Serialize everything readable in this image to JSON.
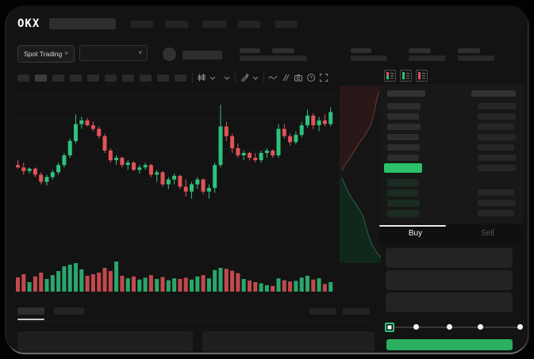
{
  "app": {
    "logo_text": "OKX"
  },
  "market_selector": {
    "label": "Spot Trading",
    "chevron": "˅"
  },
  "trade_panel": {
    "buy_tab": "Buy",
    "sell_tab": "Sell",
    "slider_stops": 5,
    "slider_value_index": 0
  },
  "colors": {
    "up": "#2fc27d",
    "down": "#e25358",
    "last_price_bar": "#2cc06a",
    "buy_button": "#2ab05f",
    "grid": "#1b1b1b"
  },
  "toolbar": {
    "icons": [
      "candlestick-style",
      "chevron-down",
      "chevron-down",
      "line-tools",
      "chevron-down",
      "wave",
      "compare-lines",
      "camera",
      "clock",
      "fullscreen"
    ],
    "timeframe_buttons": 10,
    "active_timeframe_index": 1
  },
  "order_book": {
    "view_icons": [
      "book-all-icon",
      "book-bids-icon",
      "book-asks-icon"
    ],
    "header": {
      "price_col_w": 48,
      "amount_col_w": 56
    },
    "asks": [
      {
        "pw": 42,
        "aw": 48
      },
      {
        "pw": 40,
        "aw": 48
      },
      {
        "pw": 42,
        "aw": 46
      },
      {
        "pw": 40,
        "aw": 48
      },
      {
        "pw": 41,
        "aw": 46
      },
      {
        "pw": 40,
        "aw": 48
      }
    ],
    "last_price": {
      "pw": 48,
      "aw": 48
    },
    "bids": [
      {
        "pw": 40,
        "aw": 0
      },
      {
        "pw": 40,
        "aw": 46
      },
      {
        "pw": 41,
        "aw": 48
      },
      {
        "pw": 40,
        "aw": 46
      }
    ]
  },
  "chart_data": {
    "type": "candlestick",
    "title": "",
    "xlabel": "",
    "ylabel": "",
    "ylim": [
      0,
      100
    ],
    "grid": true,
    "up_color": "#2fc27d",
    "down_color": "#e25358",
    "note": "candles = [open, high, low, close, volume] on relative 0-100 price scale",
    "candles": [
      [
        38,
        42,
        35,
        36,
        45
      ],
      [
        36,
        40,
        30,
        33,
        55
      ],
      [
        33,
        36,
        31,
        35,
        30
      ],
      [
        35,
        36,
        28,
        30,
        48
      ],
      [
        30,
        32,
        22,
        24,
        60
      ],
      [
        24,
        30,
        21,
        28,
        40
      ],
      [
        28,
        34,
        26,
        32,
        52
      ],
      [
        32,
        40,
        30,
        38,
        65
      ],
      [
        38,
        48,
        36,
        46,
        80
      ],
      [
        46,
        60,
        44,
        58,
        85
      ],
      [
        58,
        80,
        56,
        72,
        90
      ],
      [
        72,
        78,
        68,
        75,
        70
      ],
      [
        75,
        77,
        70,
        71,
        50
      ],
      [
        71,
        74,
        66,
        68,
        55
      ],
      [
        68,
        70,
        60,
        62,
        60
      ],
      [
        62,
        64,
        48,
        50,
        75
      ],
      [
        50,
        52,
        40,
        42,
        65
      ],
      [
        42,
        46,
        38,
        44,
        95
      ],
      [
        44,
        45,
        36,
        38,
        50
      ],
      [
        38,
        42,
        34,
        40,
        42
      ],
      [
        40,
        41,
        33,
        34,
        48
      ],
      [
        34,
        38,
        31,
        36,
        38
      ],
      [
        36,
        40,
        34,
        38,
        44
      ],
      [
        38,
        39,
        28,
        30,
        52
      ],
      [
        30,
        34,
        24,
        32,
        40
      ],
      [
        32,
        33,
        20,
        22,
        46
      ],
      [
        22,
        28,
        18,
        26,
        36
      ],
      [
        26,
        31,
        22,
        29,
        42
      ],
      [
        29,
        30,
        18,
        20,
        40
      ],
      [
        20,
        26,
        12,
        16,
        44
      ],
      [
        16,
        24,
        10,
        22,
        38
      ],
      [
        22,
        28,
        18,
        26,
        48
      ],
      [
        26,
        27,
        14,
        16,
        52
      ],
      [
        16,
        22,
        10,
        19,
        42
      ],
      [
        19,
        40,
        15,
        38,
        68
      ],
      [
        38,
        88,
        36,
        70,
        75
      ],
      [
        70,
        74,
        58,
        62,
        72
      ],
      [
        62,
        64,
        48,
        52,
        66
      ],
      [
        52,
        56,
        44,
        46,
        58
      ],
      [
        46,
        50,
        42,
        48,
        40
      ],
      [
        48,
        49,
        42,
        44,
        35
      ],
      [
        44,
        48,
        40,
        42,
        30
      ],
      [
        42,
        50,
        40,
        48,
        26
      ],
      [
        48,
        52,
        44,
        50,
        20
      ],
      [
        50,
        51,
        44,
        46,
        18
      ],
      [
        46,
        72,
        44,
        68,
        42
      ],
      [
        68,
        72,
        60,
        62,
        36
      ],
      [
        62,
        64,
        54,
        57,
        32
      ],
      [
        57,
        66,
        55,
        63,
        34
      ],
      [
        63,
        74,
        61,
        71,
        44
      ],
      [
        71,
        84,
        69,
        79,
        50
      ],
      [
        79,
        81,
        68,
        71,
        38
      ],
      [
        71,
        78,
        66,
        75,
        42
      ],
      [
        75,
        80,
        70,
        72,
        24
      ],
      [
        72,
        86,
        70,
        82,
        30
      ]
    ]
  },
  "depth": {
    "ask_fill": "#2a1718",
    "ask_line": "#6b3a3a",
    "bid_fill": "#10271c",
    "bid_line": "#2f6247",
    "asks_curve": [
      [
        1,
        0.02
      ],
      [
        0.93,
        0.05
      ],
      [
        0.88,
        0.1
      ],
      [
        0.83,
        0.16
      ],
      [
        0.76,
        0.22
      ],
      [
        0.64,
        0.27
      ],
      [
        0.52,
        0.31
      ],
      [
        0.38,
        0.36
      ],
      [
        0.24,
        0.41
      ],
      [
        0.12,
        0.45
      ],
      [
        0.06,
        0.48
      ]
    ],
    "bids_curve": [
      [
        0.06,
        0.52
      ],
      [
        0.13,
        0.56
      ],
      [
        0.21,
        0.6
      ],
      [
        0.31,
        0.64
      ],
      [
        0.43,
        0.68
      ],
      [
        0.56,
        0.73
      ],
      [
        0.63,
        0.79
      ],
      [
        0.71,
        0.85
      ],
      [
        0.79,
        0.9
      ],
      [
        0.9,
        0.94
      ],
      [
        1,
        0.97
      ]
    ]
  }
}
